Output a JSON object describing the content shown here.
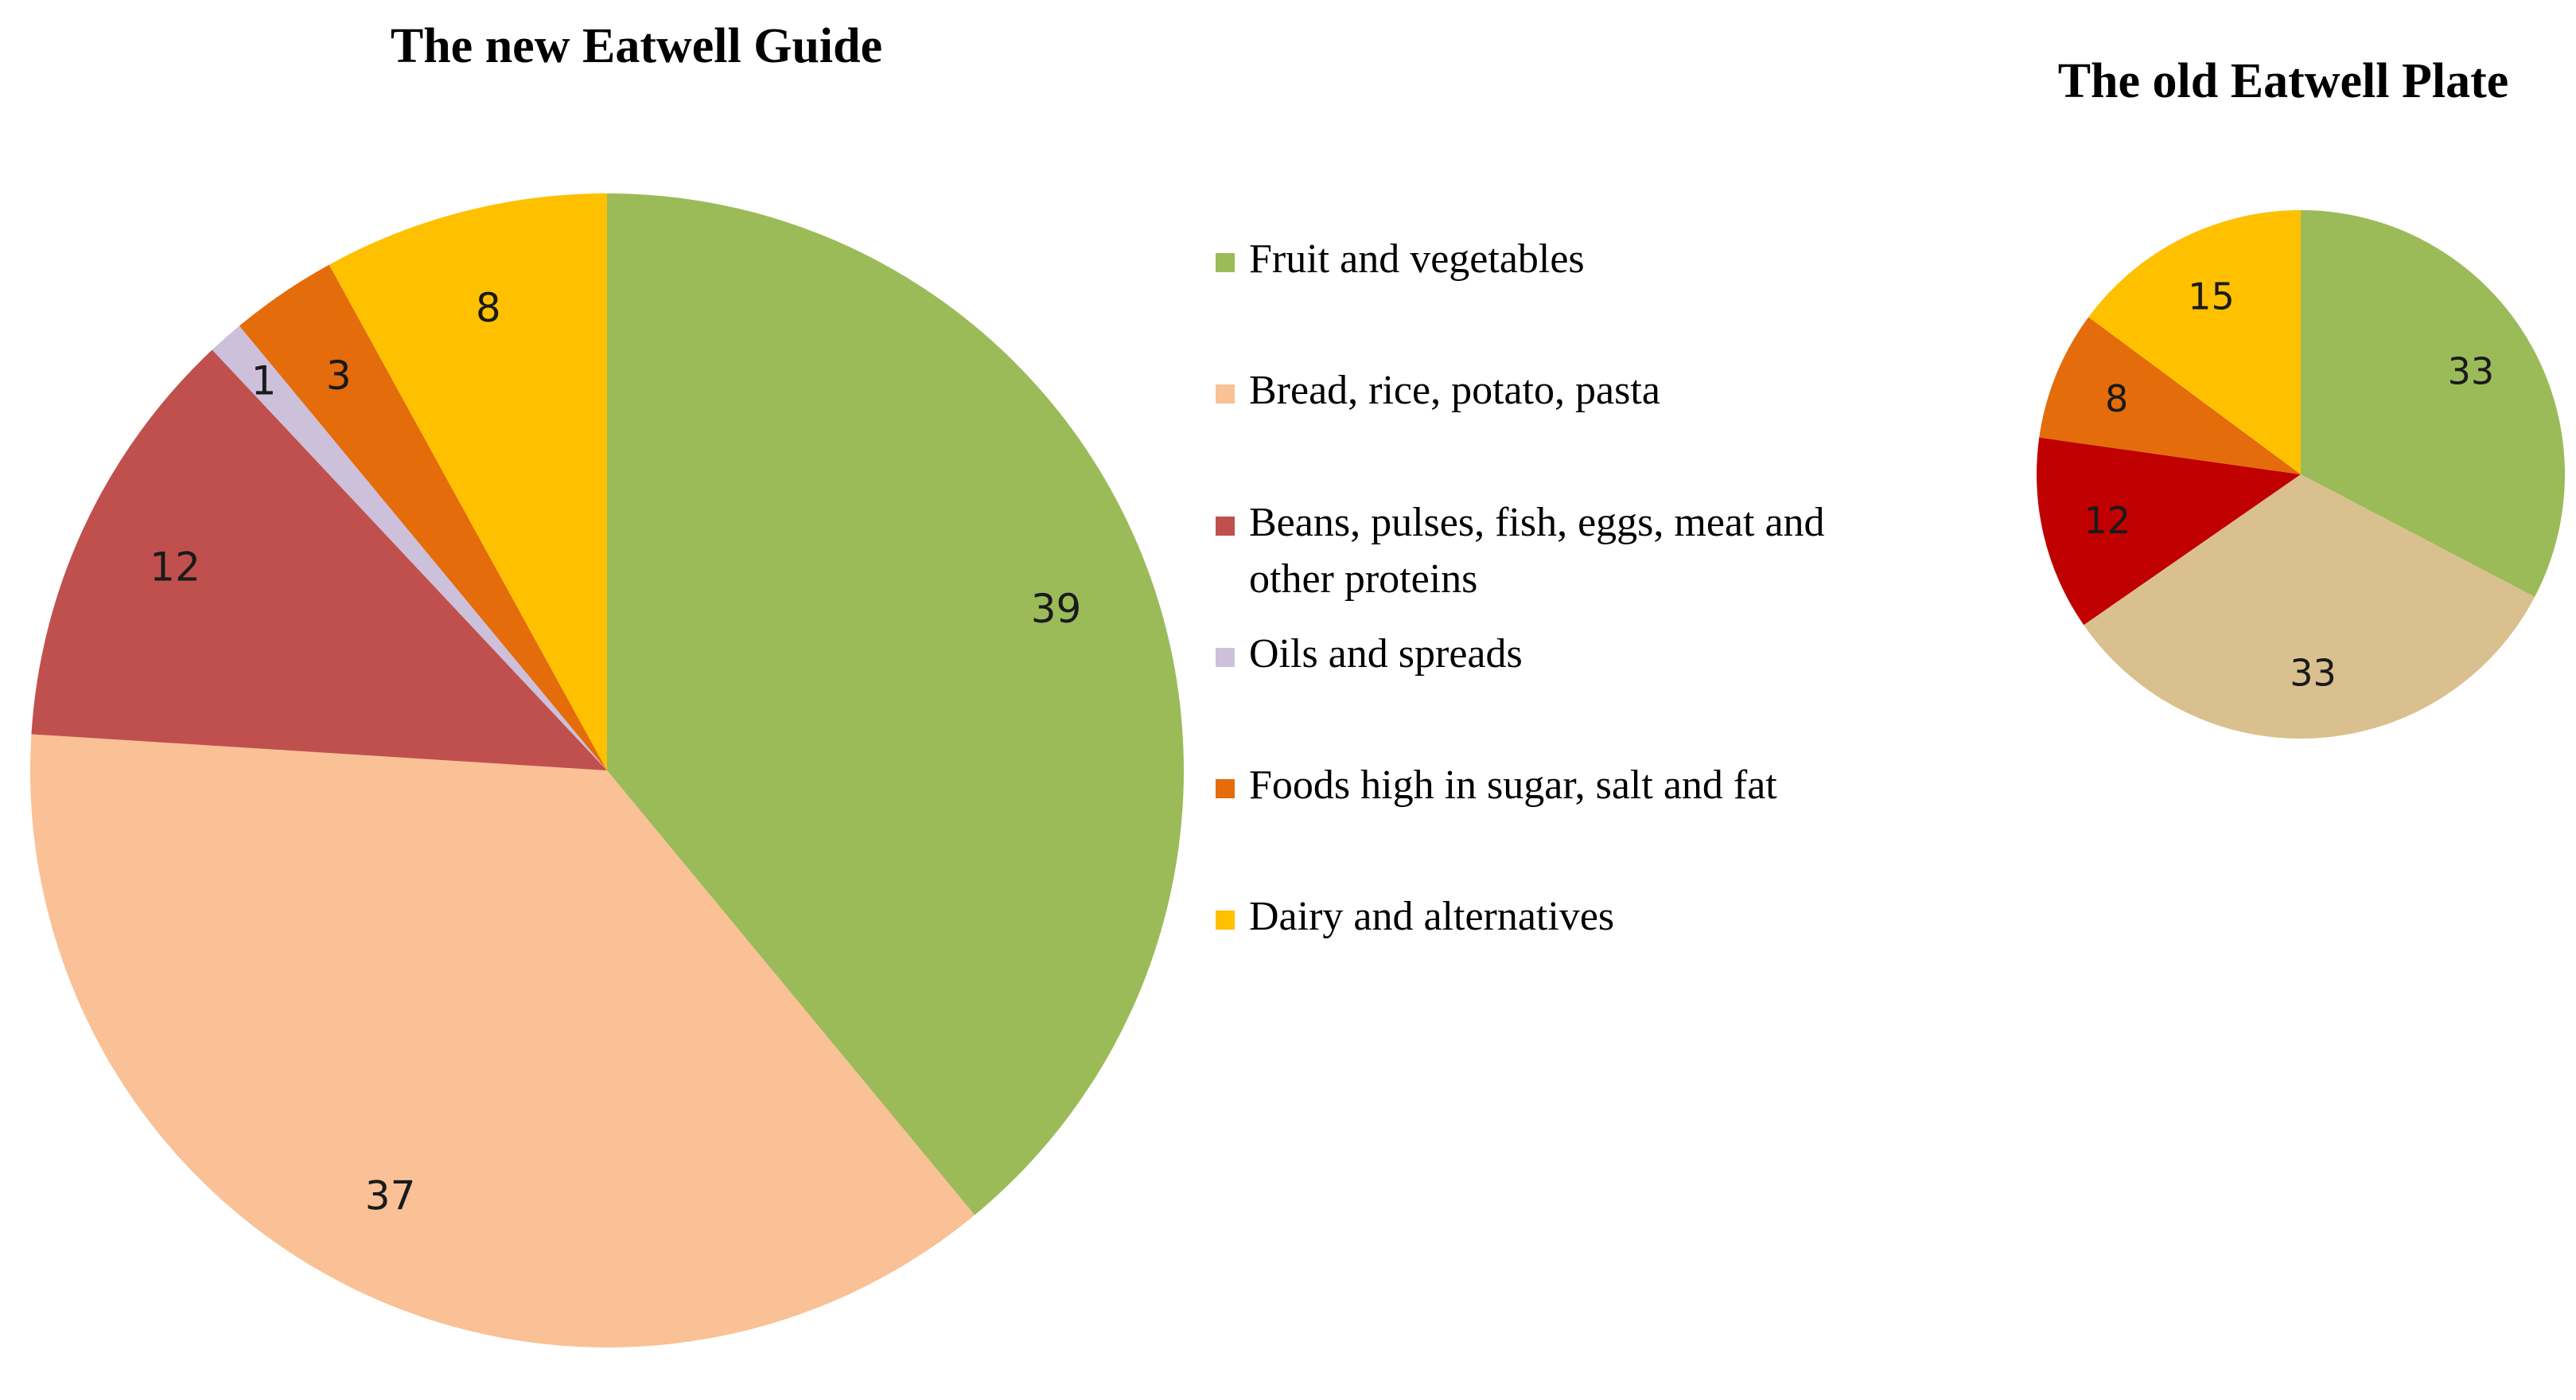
{
  "legend": {
    "items": [
      {
        "label": "Fruit and vegetables",
        "color": "#9BBB59"
      },
      {
        "label": "Bread, rice, potato, pasta",
        "color": "#F9C195"
      },
      {
        "label_lines": [
          "Beans, pulses, fish, eggs, meat and",
          "other proteins"
        ],
        "color": "#C0504D"
      },
      {
        "label": "Oils and spreads",
        "color": "#CCC0DA"
      },
      {
        "label": "Foods high in sugar, salt and fat",
        "color": "#E46C0A"
      },
      {
        "label": "Dairy and alternatives",
        "color": "#FFC000"
      }
    ]
  },
  "chart_data": [
    {
      "type": "pie",
      "title": "The new Eatwell Guide",
      "categories": [
        "Fruit and vegetables",
        "Bread, rice, potato, pasta",
        "Beans, pulses, fish, eggs, meat and other proteins",
        "Oils and spreads",
        "Foods high in sugar, salt and fat",
        "Dairy and alternatives"
      ],
      "values": [
        39,
        37,
        12,
        1,
        3,
        8
      ],
      "colors": [
        "#9BBB59",
        "#F9C195",
        "#C0504D",
        "#CCC0DA",
        "#E46C0A",
        "#FFC000"
      ],
      "data_labels": [
        "39",
        "37",
        "12",
        "1",
        "3",
        "8"
      ],
      "legend_position": "right"
    },
    {
      "type": "pie",
      "title": "The old Eatwell Plate",
      "categories": [
        "Fruit and vegetables",
        "Bread, rice, potato, pasta",
        "Beans, pulses, fish, eggs, meat and other proteins",
        "Foods high in sugar, salt and fat",
        "Dairy and alternatives"
      ],
      "values": [
        33,
        33,
        12,
        8,
        15
      ],
      "colors": [
        "#9BBB59",
        "#D9C08E",
        "#C00000",
        "#E46C0A",
        "#FFC000"
      ],
      "data_labels": [
        "33",
        "33",
        "12",
        "8",
        "15"
      ]
    }
  ]
}
